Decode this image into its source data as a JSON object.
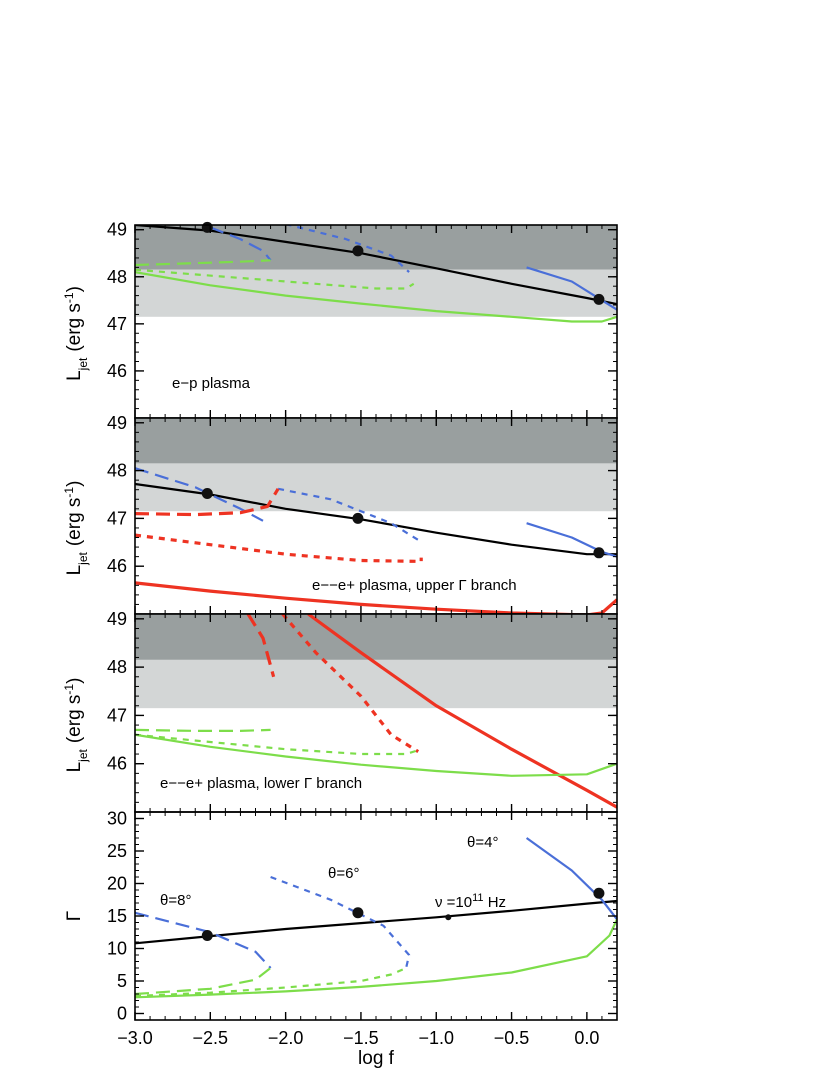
{
  "colors": {
    "black": "#000000",
    "blue": "#4a6fd8",
    "green": "#7ddd4a",
    "red": "#ee3322",
    "band_dark": "#999f9f",
    "band_light": "#d3d6d6"
  },
  "chart_data": [
    {
      "type": "line",
      "panel": "e-p",
      "xlabel": "",
      "ylabel_main": "L",
      "ylabel_sub": "jet",
      "ylabel_units": "(erg s",
      "ylabel_exp": "-1",
      "ylabel_close": ")",
      "ylim": [
        45.0,
        49.1
      ],
      "yticks": [
        "46",
        "47",
        "48",
        "49"
      ],
      "annotation": "e−p plasma",
      "bands": [
        {
          "y0": 48.15,
          "y1": 49.1,
          "shade": "dark"
        },
        {
          "y0": 47.15,
          "y1": 48.15,
          "shade": "light"
        }
      ],
      "series": [
        {
          "color": "black",
          "style": "solid",
          "points": [
            [
              -3.0,
              49.1
            ],
            [
              -2.5,
              48.98
            ],
            [
              -2.0,
              48.74
            ],
            [
              -1.5,
              48.5
            ],
            [
              -1.0,
              48.18
            ],
            [
              -0.5,
              47.85
            ],
            [
              0.0,
              47.55
            ],
            [
              0.2,
              47.42
            ]
          ]
        },
        {
          "color": "blue",
          "style": "dashed",
          "points": [
            [
              -2.5,
              49.05
            ],
            [
              -2.3,
              48.8
            ],
            [
              -2.15,
              48.55
            ],
            [
              -2.1,
              48.35
            ]
          ]
        },
        {
          "color": "blue",
          "style": "dotted",
          "points": [
            [
              -2.0,
              49.12
            ],
            [
              -1.6,
              48.8
            ],
            [
              -1.3,
              48.45
            ],
            [
              -1.18,
              48.1
            ]
          ]
        },
        {
          "color": "blue",
          "style": "solid",
          "points": [
            [
              -0.4,
              48.2
            ],
            [
              -0.1,
              47.9
            ],
            [
              0.1,
              47.5
            ],
            [
              0.2,
              47.3
            ]
          ]
        },
        {
          "color": "green",
          "style": "dashed",
          "points": [
            [
              -3.0,
              48.25
            ],
            [
              -2.7,
              48.28
            ],
            [
              -2.3,
              48.32
            ],
            [
              -2.1,
              48.35
            ]
          ]
        },
        {
          "color": "green",
          "style": "dotted",
          "points": [
            [
              -3.0,
              48.15
            ],
            [
              -2.4,
              48.0
            ],
            [
              -1.8,
              47.85
            ],
            [
              -1.4,
              47.75
            ],
            [
              -1.2,
              47.75
            ],
            [
              -1.15,
              47.85
            ]
          ]
        },
        {
          "color": "green",
          "style": "solid",
          "points": [
            [
              -3.0,
              48.1
            ],
            [
              -2.5,
              47.82
            ],
            [
              -2.0,
              47.6
            ],
            [
              -1.5,
              47.43
            ],
            [
              -1.0,
              47.27
            ],
            [
              -0.5,
              47.15
            ],
            [
              -0.1,
              47.05
            ],
            [
              0.1,
              47.05
            ],
            [
              0.2,
              47.15
            ]
          ]
        }
      ],
      "markers": [
        [
          -2.52,
          49.05
        ],
        [
          -1.52,
          48.55
        ],
        [
          0.08,
          47.52
        ]
      ]
    },
    {
      "type": "line",
      "panel": "pair-upper",
      "xlabel": "",
      "ylabel_main": "L",
      "ylabel_sub": "jet",
      "ylabel_units": "(erg s",
      "ylabel_exp": "-1",
      "ylabel_close": ")",
      "ylim": [
        45.0,
        49.1
      ],
      "yticks": [
        "46",
        "47",
        "48",
        "49"
      ],
      "annotation": "e−−e+ plasma, upper Γ branch",
      "bands": [
        {
          "y0": 48.15,
          "y1": 49.1,
          "shade": "dark"
        },
        {
          "y0": 47.15,
          "y1": 48.15,
          "shade": "light"
        }
      ],
      "series": [
        {
          "color": "black",
          "style": "solid",
          "points": [
            [
              -3.0,
              47.72
            ],
            [
              -2.5,
              47.5
            ],
            [
              -2.0,
              47.2
            ],
            [
              -1.5,
              46.98
            ],
            [
              -1.0,
              46.7
            ],
            [
              -0.5,
              46.45
            ],
            [
              0.0,
              46.25
            ],
            [
              0.2,
              46.25
            ]
          ]
        },
        {
          "color": "blue",
          "style": "dashed",
          "points": [
            [
              -3.0,
              48.05
            ],
            [
              -2.6,
              47.65
            ],
            [
              -2.3,
              47.2
            ],
            [
              -2.15,
              46.95
            ]
          ]
        },
        {
          "color": "blue",
          "style": "dotted",
          "points": [
            [
              -2.05,
              47.62
            ],
            [
              -1.7,
              47.4
            ],
            [
              -1.3,
              46.9
            ],
            [
              -1.12,
              46.55
            ]
          ]
        },
        {
          "color": "blue",
          "style": "solid",
          "points": [
            [
              -0.4,
              46.9
            ],
            [
              -0.1,
              46.6
            ],
            [
              0.1,
              46.3
            ],
            [
              0.2,
              46.2
            ]
          ]
        },
        {
          "color": "red",
          "style": "dashed",
          "points": [
            [
              -3.0,
              47.1
            ],
            [
              -2.6,
              47.08
            ],
            [
              -2.3,
              47.12
            ],
            [
              -2.12,
              47.25
            ],
            [
              -2.05,
              47.62
            ]
          ]
        },
        {
          "color": "red",
          "style": "dotted",
          "points": [
            [
              -3.0,
              46.65
            ],
            [
              -2.5,
              46.45
            ],
            [
              -2.0,
              46.25
            ],
            [
              -1.5,
              46.12
            ],
            [
              -1.1,
              46.1
            ],
            [
              -1.1,
              46.18
            ]
          ]
        },
        {
          "color": "red",
          "style": "solid",
          "points": [
            [
              -3.0,
              45.65
            ],
            [
              -2.5,
              45.48
            ],
            [
              -2.0,
              45.33
            ],
            [
              -1.5,
              45.2
            ],
            [
              -1.0,
              45.1
            ],
            [
              -0.5,
              45.02
            ],
            [
              0.0,
              44.98
            ],
            [
              0.1,
              45.02
            ],
            [
              0.2,
              45.3
            ]
          ]
        }
      ],
      "markers": [
        [
          -2.52,
          47.52
        ],
        [
          -1.52,
          47.0
        ],
        [
          0.08,
          46.28
        ]
      ]
    },
    {
      "type": "line",
      "panel": "pair-lower",
      "xlabel": "",
      "ylabel_main": "L",
      "ylabel_sub": "jet",
      "ylabel_units": "(erg s",
      "ylabel_exp": "-1",
      "ylabel_close": ")",
      "ylim": [
        45.0,
        49.1
      ],
      "yticks": [
        "46",
        "47",
        "48",
        "49"
      ],
      "annotation": "e−−e+ plasma, lower Γ branch",
      "bands": [
        {
          "y0": 48.15,
          "y1": 49.1,
          "shade": "dark"
        },
        {
          "y0": 47.15,
          "y1": 48.15,
          "shade": "light"
        }
      ],
      "series": [
        {
          "color": "red",
          "style": "dashed",
          "points": [
            [
              -2.25,
              49.1
            ],
            [
              -2.15,
              48.6
            ],
            [
              -2.08,
              47.8
            ]
          ]
        },
        {
          "color": "red",
          "style": "dotted",
          "points": [
            [
              -2.02,
              49.1
            ],
            [
              -1.8,
              48.3
            ],
            [
              -1.5,
              47.4
            ],
            [
              -1.3,
              46.6
            ],
            [
              -1.12,
              46.25
            ]
          ]
        },
        {
          "color": "red",
          "style": "solid",
          "points": [
            [
              -1.85,
              49.1
            ],
            [
              -1.5,
              48.3
            ],
            [
              -1.0,
              47.2
            ],
            [
              -0.5,
              46.3
            ],
            [
              0.0,
              45.45
            ],
            [
              0.2,
              45.1
            ]
          ]
        },
        {
          "color": "green",
          "style": "dashed",
          "points": [
            [
              -3.0,
              46.7
            ],
            [
              -2.6,
              46.68
            ],
            [
              -2.3,
              46.68
            ],
            [
              -2.1,
              46.7
            ]
          ]
        },
        {
          "color": "green",
          "style": "dotted",
          "points": [
            [
              -3.0,
              46.6
            ],
            [
              -2.5,
              46.45
            ],
            [
              -2.0,
              46.3
            ],
            [
              -1.5,
              46.2
            ],
            [
              -1.2,
              46.2
            ],
            [
              -1.12,
              46.28
            ]
          ]
        },
        {
          "color": "green",
          "style": "solid",
          "points": [
            [
              -3.0,
              46.6
            ],
            [
              -2.5,
              46.35
            ],
            [
              -2.0,
              46.15
            ],
            [
              -1.5,
              45.98
            ],
            [
              -1.0,
              45.85
            ],
            [
              -0.5,
              45.75
            ],
            [
              0.0,
              45.78
            ],
            [
              0.2,
              46.0
            ]
          ]
        }
      ],
      "markers": []
    },
    {
      "type": "line",
      "panel": "gamma",
      "xlabel": "log f",
      "ylabel_main": "Γ",
      "xlim": [
        -3.0,
        0.2
      ],
      "ylim": [
        -1,
        31
      ],
      "xticks": [
        "−3.0",
        "−2.5",
        "−2.0",
        "−1.5",
        "−1.0",
        "−0.5",
        "0.0"
      ],
      "yticks": [
        "0",
        "5",
        "10",
        "15",
        "20",
        "25",
        "30"
      ],
      "annotations": {
        "theta8": "θ=8°",
        "theta6": "θ=6°",
        "theta4": "θ=4°",
        "nu": "ν =10",
        "nu_exp": "11",
        "nu_unit": " Hz"
      },
      "series": [
        {
          "color": "black",
          "style": "solid",
          "points": [
            [
              -3.0,
              10.8
            ],
            [
              -2.5,
              11.9
            ],
            [
              -2.0,
              13.0
            ],
            [
              -1.5,
              13.9
            ],
            [
              -1.0,
              14.8
            ],
            [
              -0.5,
              15.8
            ],
            [
              0.0,
              16.9
            ],
            [
              0.2,
              17.3
            ]
          ]
        },
        {
          "color": "blue",
          "style": "dashed",
          "points": [
            [
              -3.0,
              15.5
            ],
            [
              -2.5,
              12.5
            ],
            [
              -2.2,
              9.5
            ],
            [
              -2.1,
              7.0
            ]
          ]
        },
        {
          "color": "blue",
          "style": "dotted",
          "points": [
            [
              -2.1,
              21.0
            ],
            [
              -1.7,
              17.5
            ],
            [
              -1.35,
              13.5
            ],
            [
              -1.18,
              9.0
            ],
            [
              -1.2,
              7.0
            ]
          ]
        },
        {
          "color": "blue",
          "style": "solid",
          "points": [
            [
              -0.4,
              27.0
            ],
            [
              -0.1,
              22.0
            ],
            [
              0.1,
              17.5
            ],
            [
              0.2,
              14.5
            ]
          ]
        },
        {
          "color": "green",
          "style": "dashed",
          "points": [
            [
              -3.0,
              3.0
            ],
            [
              -2.5,
              3.8
            ],
            [
              -2.2,
              5.2
            ],
            [
              -2.1,
              7.0
            ]
          ]
        },
        {
          "color": "green",
          "style": "dotted",
          "points": [
            [
              -3.0,
              2.7
            ],
            [
              -2.5,
              3.2
            ],
            [
              -2.0,
              4.0
            ],
            [
              -1.5,
              5.0
            ],
            [
              -1.3,
              6.0
            ],
            [
              -1.2,
              7.0
            ]
          ]
        },
        {
          "color": "green",
          "style": "solid",
          "points": [
            [
              -3.0,
              2.5
            ],
            [
              -2.5,
              2.9
            ],
            [
              -2.0,
              3.4
            ],
            [
              -1.5,
              4.1
            ],
            [
              -1.0,
              5.0
            ],
            [
              -0.5,
              6.3
            ],
            [
              0.0,
              8.8
            ],
            [
              0.15,
              12.0
            ],
            [
              0.2,
              14.5
            ]
          ]
        }
      ],
      "markers": [
        [
          -2.52,
          12.0
        ],
        [
          -1.52,
          15.5
        ],
        [
          0.08,
          18.5
        ]
      ],
      "small_markers": [
        [
          -0.92,
          14.8
        ]
      ]
    }
  ]
}
